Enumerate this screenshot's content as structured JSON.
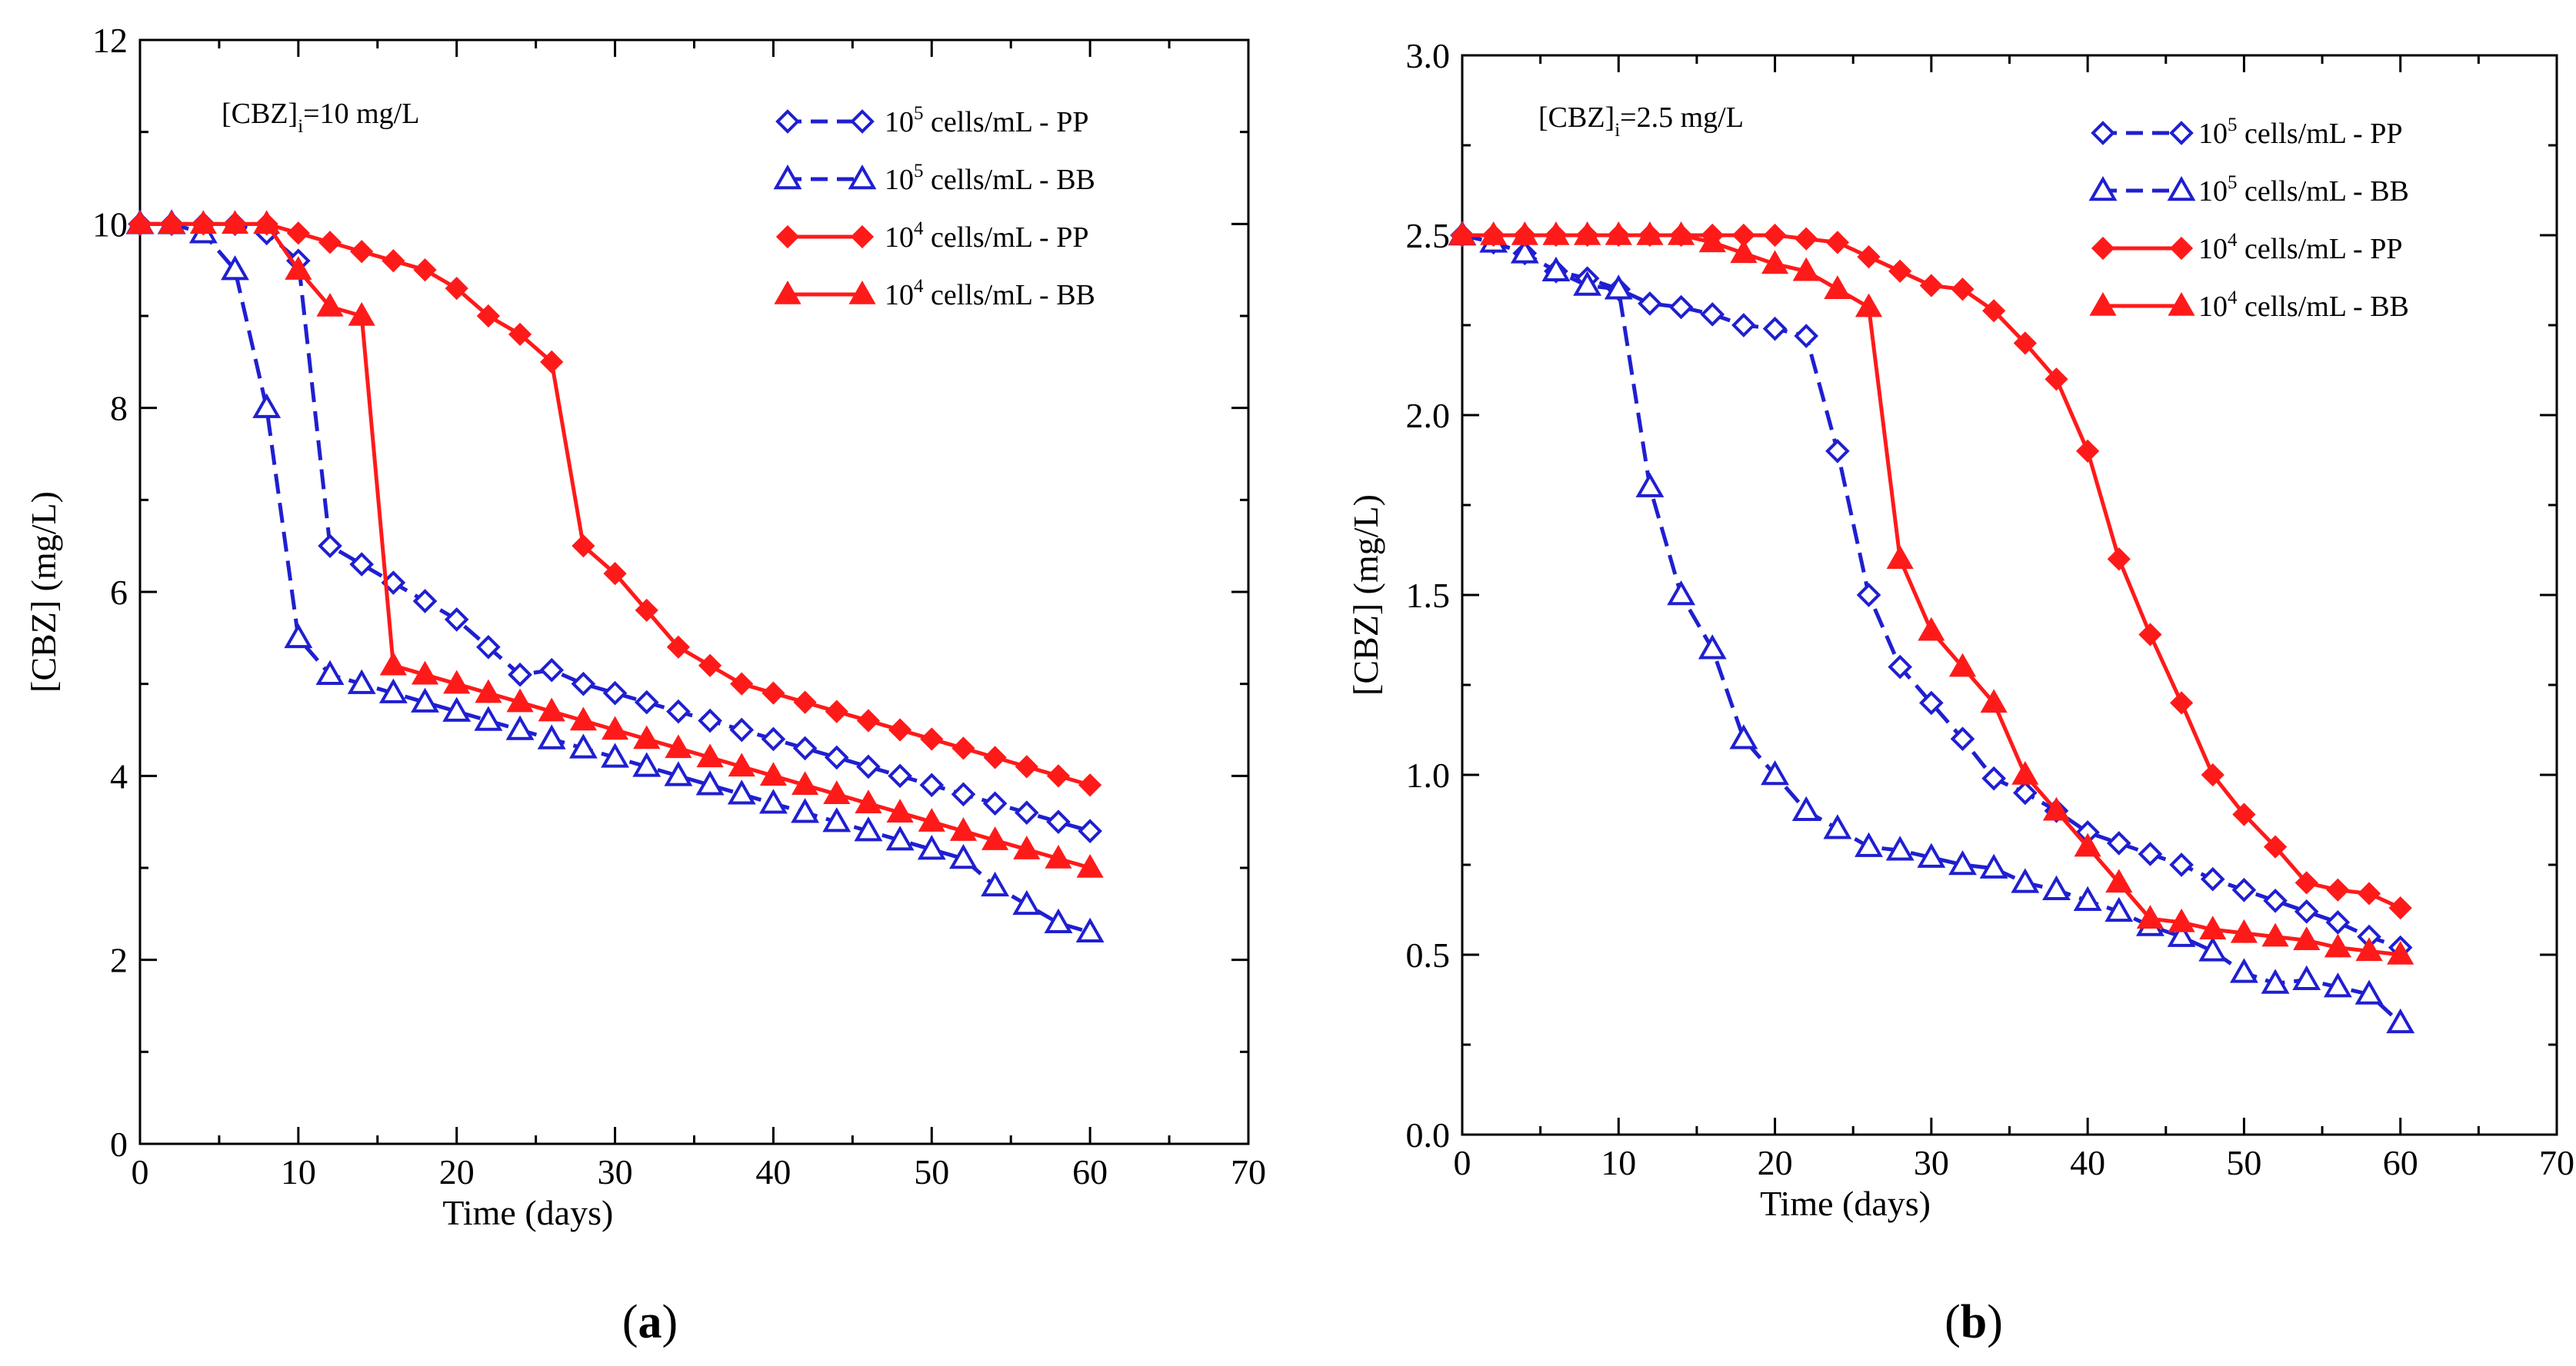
{
  "chart_data": [
    {
      "type": "line",
      "panel": "a",
      "panel_label": "a",
      "annotation": {
        "text": "[CBZ]",
        "subscript": "i",
        "rest": "=10 mg/L"
      },
      "xlabel": "Time (days)",
      "ylabel": "[CBZ] (mg/L)",
      "xlim": [
        0,
        70
      ],
      "ylim": [
        0,
        12
      ],
      "xticks": [
        "0",
        "10",
        "20",
        "30",
        "40",
        "50",
        "60",
        "70"
      ],
      "yticks": [
        "0",
        "2",
        "4",
        "6",
        "8",
        "10",
        "12"
      ],
      "legend_position": "top-right",
      "series": [
        {
          "name": "10^5 cells/mL - PP",
          "label_base": "10",
          "label_exp": "5",
          "label_rest": " cells/mL - PP",
          "color": "#1f1fd1",
          "dash": "dashed",
          "marker": "diamond-open",
          "x": [
            0,
            2,
            4,
            6,
            8,
            10,
            12,
            14,
            16,
            18,
            20,
            22,
            24,
            26,
            28,
            30,
            32,
            34,
            36,
            38,
            40,
            42,
            44,
            46,
            48,
            50,
            52,
            54,
            56,
            58,
            60
          ],
          "values": [
            10,
            10,
            10,
            10,
            9.9,
            9.6,
            6.5,
            6.3,
            6.1,
            5.9,
            5.7,
            5.4,
            5.1,
            5.15,
            5.0,
            4.9,
            4.8,
            4.7,
            4.6,
            4.5,
            4.4,
            4.3,
            4.2,
            4.1,
            4.0,
            3.9,
            3.8,
            3.7,
            3.6,
            3.5,
            3.4
          ]
        },
        {
          "name": "10^5 cells/mL - BB",
          "label_base": "10",
          "label_exp": "5",
          "label_rest": " cells/mL - BB",
          "color": "#1f1fd1",
          "dash": "dashed",
          "marker": "triangle-open",
          "x": [
            0,
            2,
            4,
            6,
            8,
            10,
            12,
            14,
            16,
            18,
            20,
            22,
            24,
            26,
            28,
            30,
            32,
            34,
            36,
            38,
            40,
            42,
            44,
            46,
            48,
            50,
            52,
            54,
            56,
            58,
            60
          ],
          "values": [
            10,
            10,
            9.9,
            9.5,
            8.0,
            5.5,
            5.1,
            5.0,
            4.9,
            4.8,
            4.7,
            4.6,
            4.5,
            4.4,
            4.3,
            4.2,
            4.1,
            4.0,
            3.9,
            3.8,
            3.7,
            3.6,
            3.5,
            3.4,
            3.3,
            3.2,
            3.1,
            2.8,
            2.6,
            2.4,
            2.3
          ]
        },
        {
          "name": "10^4 cells/mL - PP",
          "label_base": "10",
          "label_exp": "4",
          "label_rest": " cells/mL - PP",
          "color": "#ff1a1a",
          "dash": "solid",
          "marker": "diamond-filled",
          "x": [
            0,
            2,
            4,
            6,
            8,
            10,
            12,
            14,
            16,
            18,
            20,
            22,
            24,
            26,
            28,
            30,
            32,
            34,
            36,
            38,
            40,
            42,
            44,
            46,
            48,
            50,
            52,
            54,
            56,
            58,
            60
          ],
          "values": [
            10,
            10,
            10,
            10,
            10,
            9.9,
            9.8,
            9.7,
            9.6,
            9.5,
            9.3,
            9.0,
            8.8,
            8.5,
            6.5,
            6.2,
            5.8,
            5.4,
            5.2,
            5.0,
            4.9,
            4.8,
            4.7,
            4.6,
            4.5,
            4.4,
            4.3,
            4.2,
            4.1,
            4.0,
            3.9
          ]
        },
        {
          "name": "10^4 cells/mL - BB",
          "label_base": "10",
          "label_exp": "4",
          "label_rest": " cells/mL - BB",
          "color": "#ff1a1a",
          "dash": "solid",
          "marker": "triangle-filled",
          "x": [
            0,
            2,
            4,
            6,
            8,
            10,
            12,
            14,
            16,
            18,
            20,
            22,
            24,
            26,
            28,
            30,
            32,
            34,
            36,
            38,
            40,
            42,
            44,
            46,
            48,
            50,
            52,
            54,
            56,
            58,
            60
          ],
          "values": [
            10,
            10,
            10,
            10,
            10,
            9.5,
            9.1,
            9.0,
            5.2,
            5.1,
            5.0,
            4.9,
            4.8,
            4.7,
            4.6,
            4.5,
            4.4,
            4.3,
            4.2,
            4.1,
            4.0,
            3.9,
            3.8,
            3.7,
            3.6,
            3.5,
            3.4,
            3.3,
            3.2,
            3.1,
            3.0
          ]
        }
      ]
    },
    {
      "type": "line",
      "panel": "b",
      "panel_label": "b",
      "annotation": {
        "text": "[CBZ]",
        "subscript": "i",
        "rest": "=2.5 mg/L"
      },
      "xlabel": "Time (days)",
      "ylabel": "[CBZ] (mg/L)",
      "xlim": [
        0,
        70
      ],
      "ylim": [
        0,
        3
      ],
      "xticks": [
        "0",
        "10",
        "20",
        "30",
        "40",
        "50",
        "60",
        "70"
      ],
      "yticks": [
        "0.0",
        "0.5",
        "1.0",
        "1.5",
        "2.0",
        "2.5",
        "3.0"
      ],
      "legend_position": "top-right",
      "series": [
        {
          "name": "10^5 cells/mL - PP",
          "label_base": "10",
          "label_exp": "5",
          "label_rest": " cells/mL - PP",
          "color": "#1f1fd1",
          "dash": "dashed",
          "marker": "diamond-open",
          "x": [
            0,
            2,
            4,
            6,
            8,
            10,
            12,
            14,
            16,
            18,
            20,
            22,
            24,
            26,
            28,
            30,
            32,
            34,
            36,
            38,
            40,
            42,
            44,
            46,
            48,
            50,
            52,
            54,
            56,
            58,
            60
          ],
          "values": [
            2.5,
            2.48,
            2.45,
            2.4,
            2.38,
            2.35,
            2.31,
            2.3,
            2.28,
            2.25,
            2.24,
            2.22,
            1.9,
            1.5,
            1.3,
            1.2,
            1.1,
            0.99,
            0.95,
            0.9,
            0.84,
            0.81,
            0.78,
            0.75,
            0.71,
            0.68,
            0.65,
            0.62,
            0.59,
            0.55,
            0.52
          ]
        },
        {
          "name": "10^5 cells/mL - BB",
          "label_base": "10",
          "label_exp": "5",
          "label_rest": " cells/mL - BB",
          "color": "#1f1fd1",
          "dash": "dashed",
          "marker": "triangle-open",
          "x": [
            0,
            2,
            4,
            6,
            8,
            10,
            12,
            14,
            16,
            18,
            20,
            22,
            24,
            26,
            28,
            30,
            32,
            34,
            36,
            38,
            40,
            42,
            44,
            46,
            48,
            50,
            52,
            54,
            56,
            58,
            60
          ],
          "values": [
            2.5,
            2.48,
            2.45,
            2.4,
            2.36,
            2.35,
            1.8,
            1.5,
            1.35,
            1.1,
            1.0,
            0.9,
            0.85,
            0.8,
            0.79,
            0.77,
            0.75,
            0.74,
            0.7,
            0.68,
            0.65,
            0.62,
            0.58,
            0.55,
            0.51,
            0.45,
            0.42,
            0.43,
            0.41,
            0.39,
            0.31
          ]
        },
        {
          "name": "10^4 cells/mL - PP",
          "label_base": "10",
          "label_exp": "4",
          "label_rest": " cells/mL - PP",
          "color": "#ff1a1a",
          "dash": "solid",
          "marker": "diamond-filled",
          "x": [
            0,
            2,
            4,
            6,
            8,
            10,
            12,
            14,
            16,
            18,
            20,
            22,
            24,
            26,
            28,
            30,
            32,
            34,
            36,
            38,
            40,
            42,
            44,
            46,
            48,
            50,
            52,
            54,
            56,
            58,
            60
          ],
          "values": [
            2.5,
            2.5,
            2.5,
            2.5,
            2.5,
            2.5,
            2.5,
            2.5,
            2.5,
            2.5,
            2.5,
            2.49,
            2.48,
            2.44,
            2.4,
            2.36,
            2.35,
            2.29,
            2.2,
            2.1,
            1.9,
            1.6,
            1.39,
            1.2,
            1.0,
            0.89,
            0.8,
            0.7,
            0.68,
            0.67,
            0.63
          ]
        },
        {
          "name": "10^4 cells/mL - BB",
          "label_base": "10",
          "label_exp": "4",
          "label_rest": " cells/mL - BB",
          "color": "#ff1a1a",
          "dash": "solid",
          "marker": "triangle-filled",
          "x": [
            0,
            2,
            4,
            6,
            8,
            10,
            12,
            14,
            16,
            18,
            20,
            22,
            24,
            26,
            28,
            30,
            32,
            34,
            36,
            38,
            40,
            42,
            44,
            46,
            48,
            50,
            52,
            54,
            56,
            58,
            60
          ],
          "values": [
            2.5,
            2.5,
            2.5,
            2.5,
            2.5,
            2.5,
            2.5,
            2.5,
            2.48,
            2.45,
            2.42,
            2.4,
            2.35,
            2.3,
            1.6,
            1.4,
            1.3,
            1.2,
            1.0,
            0.9,
            0.8,
            0.7,
            0.6,
            0.59,
            0.57,
            0.56,
            0.55,
            0.54,
            0.52,
            0.51,
            0.5
          ]
        }
      ]
    }
  ]
}
